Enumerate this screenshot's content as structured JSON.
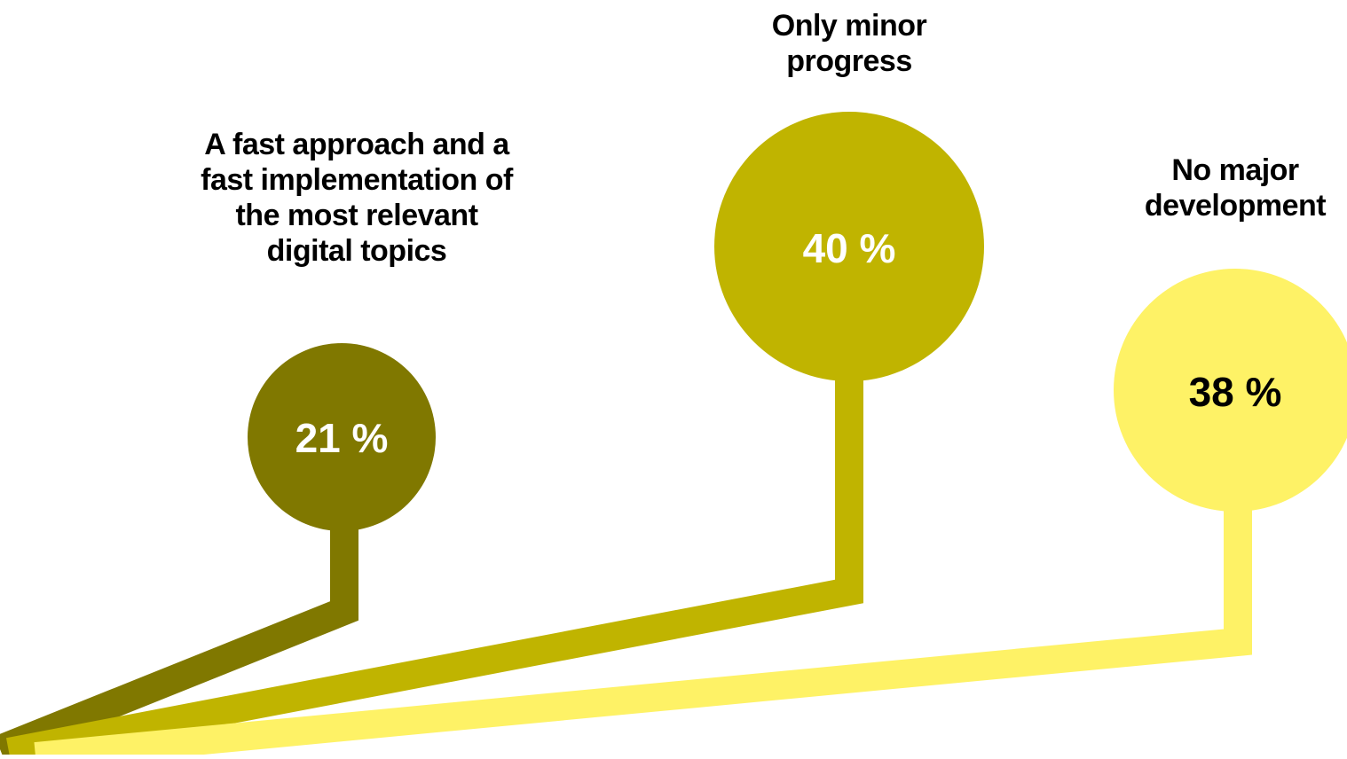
{
  "items": [
    {
      "id": "fast",
      "percent": "21 %",
      "value": 21,
      "label_lines": [
        "A fast approach and a",
        "fast implementation of",
        "the most relevant",
        "digital topics"
      ],
      "color": "#807800",
      "text_color": "#ffffff"
    },
    {
      "id": "minor",
      "percent": "40 %",
      "value": 40,
      "label_lines": [
        "Only minor",
        "progress"
      ],
      "color": "#C0B400",
      "text_color": "#ffffff"
    },
    {
      "id": "none",
      "percent": "38 %",
      "value": 38,
      "label_lines": [
        "No major",
        "development"
      ],
      "color": "#FEF266",
      "text_color": "#000000"
    }
  ]
}
